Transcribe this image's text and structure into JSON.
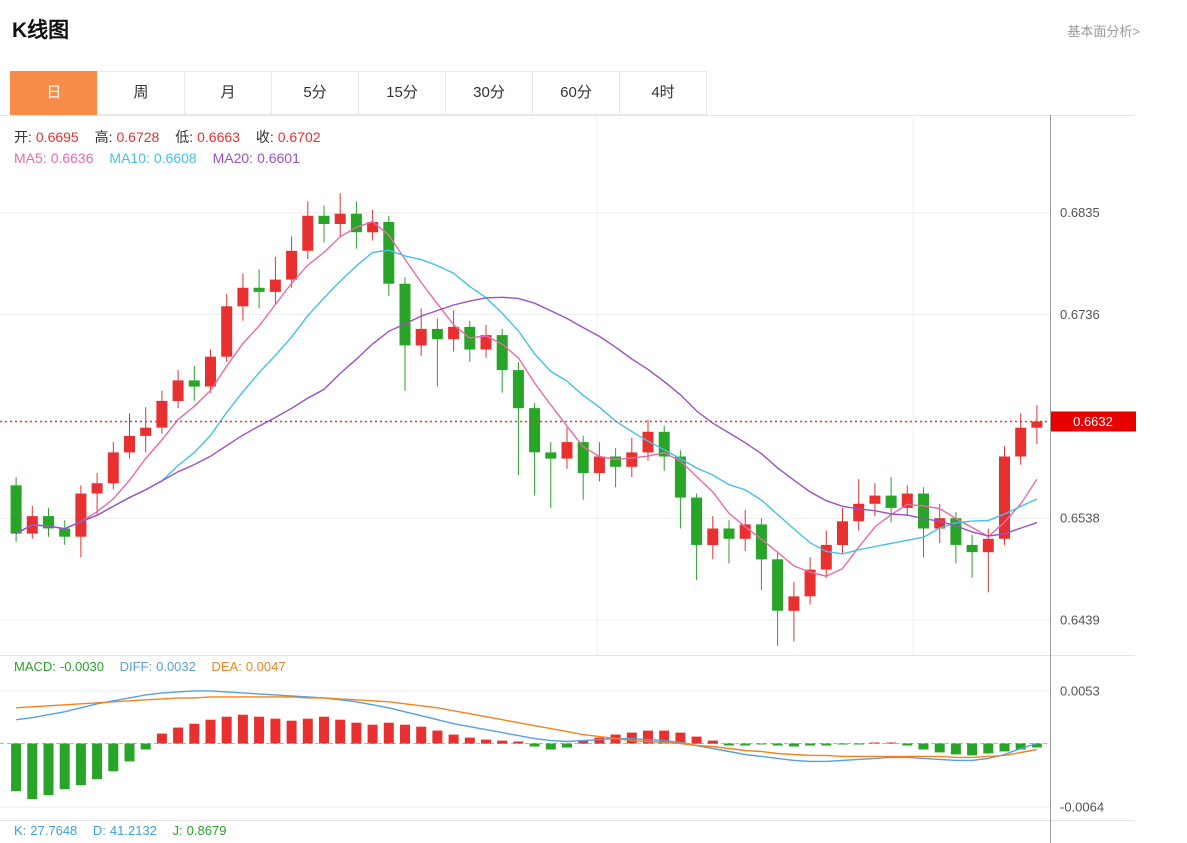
{
  "header": {
    "title": "K线图",
    "link": "基本面分析>"
  },
  "tabs": [
    {
      "label": "日",
      "active": true
    },
    {
      "label": "周",
      "active": false
    },
    {
      "label": "月",
      "active": false
    },
    {
      "label": "5分",
      "active": false
    },
    {
      "label": "15分",
      "active": false
    },
    {
      "label": "30分",
      "active": false
    },
    {
      "label": "60分",
      "active": false
    },
    {
      "label": "4时",
      "active": false
    }
  ],
  "overlay": {
    "open_label": "开:",
    "open": "0.6695",
    "high_label": "高:",
    "high": "0.6728",
    "low_label": "低:",
    "low": "0.6663",
    "close_label": "收:",
    "close": "0.6702",
    "ma5_label": "MA5:",
    "ma5": "0.6636",
    "ma10_label": "MA10:",
    "ma10": "0.6608",
    "ma20_label": "MA20:",
    "ma20": "0.6601"
  },
  "macd_overlay": {
    "macd_label": "MACD:",
    "macd": "-0.0030",
    "diff_label": "DIFF:",
    "diff": "0.0032",
    "dea_label": "DEA:",
    "dea": "0.0047"
  },
  "kdj_overlay": {
    "k_label": "K:",
    "k": "27.7648",
    "d_label": "D:",
    "d": "41.2132",
    "j_label": "J:",
    "j": "0.8679"
  },
  "colors": {
    "up": "#e93030",
    "down": "#28a428",
    "ma5": "#e96aa8",
    "ma10": "#45c1e8",
    "ma20": "#9b51c8",
    "price_line": "#f03030",
    "badge": "#e60000",
    "diff_line": "#55a0e0",
    "dea_line": "#f5821f",
    "zero_line": "#6fd8c8",
    "tab_active": "#f88c4a",
    "grid": "#ededed"
  },
  "chart_data": {
    "type": "candlestick",
    "timeframe": "日",
    "title": "K线图",
    "main": {
      "ylim": [
        0.6405,
        0.693
      ],
      "yticks": [
        0.6835,
        0.6736,
        0.6538,
        0.6439
      ],
      "current_price": 0.6632,
      "ma_periods": [
        5,
        10,
        20
      ],
      "candle_format": [
        "open",
        "close",
        "low",
        "high"
      ],
      "candles": [
        [
          0.657,
          0.6523,
          0.6515,
          0.6578
        ],
        [
          0.6523,
          0.654,
          0.6518,
          0.655
        ],
        [
          0.654,
          0.6528,
          0.652,
          0.6548
        ],
        [
          0.6528,
          0.652,
          0.6512,
          0.6536
        ],
        [
          0.652,
          0.6562,
          0.65,
          0.657
        ],
        [
          0.6562,
          0.6572,
          0.654,
          0.6582
        ],
        [
          0.6572,
          0.6602,
          0.6566,
          0.6612
        ],
        [
          0.6602,
          0.6618,
          0.6596,
          0.664
        ],
        [
          0.6618,
          0.6626,
          0.6602,
          0.6646
        ],
        [
          0.6626,
          0.6652,
          0.662,
          0.6662
        ],
        [
          0.6652,
          0.6672,
          0.6645,
          0.6682
        ],
        [
          0.6672,
          0.6666,
          0.6652,
          0.6686
        ],
        [
          0.6666,
          0.6695,
          0.666,
          0.6702
        ],
        [
          0.6695,
          0.6744,
          0.669,
          0.6756
        ],
        [
          0.6744,
          0.6762,
          0.673,
          0.6776
        ],
        [
          0.6762,
          0.6758,
          0.6742,
          0.678
        ],
        [
          0.6758,
          0.677,
          0.6746,
          0.6792
        ],
        [
          0.677,
          0.6798,
          0.6762,
          0.6812
        ],
        [
          0.6798,
          0.6832,
          0.679,
          0.6846
        ],
        [
          0.6832,
          0.6824,
          0.6806,
          0.6842
        ],
        [
          0.6824,
          0.6834,
          0.6812,
          0.6854
        ],
        [
          0.6834,
          0.6816,
          0.68,
          0.6846
        ],
        [
          0.6816,
          0.6826,
          0.6808,
          0.6838
        ],
        [
          0.6826,
          0.6766,
          0.6754,
          0.6832
        ],
        [
          0.6766,
          0.6706,
          0.6662,
          0.6772
        ],
        [
          0.6706,
          0.6722,
          0.6696,
          0.6742
        ],
        [
          0.6722,
          0.6712,
          0.6666,
          0.6732
        ],
        [
          0.6712,
          0.6724,
          0.67,
          0.674
        ],
        [
          0.6724,
          0.6702,
          0.669,
          0.673
        ],
        [
          0.6702,
          0.6716,
          0.6694,
          0.6726
        ],
        [
          0.6716,
          0.6682,
          0.666,
          0.6722
        ],
        [
          0.6682,
          0.6645,
          0.658,
          0.669
        ],
        [
          0.6645,
          0.6602,
          0.656,
          0.665
        ],
        [
          0.6602,
          0.6596,
          0.6548,
          0.6612
        ],
        [
          0.6596,
          0.6612,
          0.6586,
          0.6626
        ],
        [
          0.6612,
          0.6582,
          0.6556,
          0.6618
        ],
        [
          0.6582,
          0.6598,
          0.6574,
          0.6612
        ],
        [
          0.6598,
          0.6588,
          0.6568,
          0.6606
        ],
        [
          0.6588,
          0.6602,
          0.6578,
          0.6616
        ],
        [
          0.6602,
          0.6622,
          0.6594,
          0.6634
        ],
        [
          0.6622,
          0.6598,
          0.6584,
          0.6628
        ],
        [
          0.6598,
          0.6558,
          0.6528,
          0.6604
        ],
        [
          0.6558,
          0.6512,
          0.6478,
          0.6562
        ],
        [
          0.6512,
          0.6528,
          0.6498,
          0.654
        ],
        [
          0.6528,
          0.6518,
          0.6494,
          0.6536
        ],
        [
          0.6518,
          0.6532,
          0.6506,
          0.6546
        ],
        [
          0.6532,
          0.6498,
          0.6468,
          0.6538
        ],
        [
          0.6498,
          0.6448,
          0.6414,
          0.6504
        ],
        [
          0.6448,
          0.6462,
          0.6418,
          0.6476
        ],
        [
          0.6462,
          0.6488,
          0.6454,
          0.65
        ],
        [
          0.6488,
          0.6512,
          0.648,
          0.6526
        ],
        [
          0.6512,
          0.6535,
          0.6504,
          0.6548
        ],
        [
          0.6535,
          0.6552,
          0.6526,
          0.6576
        ],
        [
          0.6552,
          0.656,
          0.654,
          0.6572
        ],
        [
          0.656,
          0.6548,
          0.6534,
          0.6578
        ],
        [
          0.6548,
          0.6562,
          0.654,
          0.657
        ],
        [
          0.6562,
          0.6528,
          0.65,
          0.6568
        ],
        [
          0.6528,
          0.6538,
          0.6514,
          0.6552
        ],
        [
          0.6538,
          0.6512,
          0.6494,
          0.6544
        ],
        [
          0.6512,
          0.6505,
          0.648,
          0.6522
        ],
        [
          0.6505,
          0.6518,
          0.6466,
          0.6528
        ],
        [
          0.6518,
          0.6598,
          0.6512,
          0.6608
        ],
        [
          0.6598,
          0.6626,
          0.659,
          0.664
        ],
        [
          0.6626,
          0.6632,
          0.661,
          0.6648
        ]
      ]
    },
    "macd": {
      "ylim": [
        -0.0075,
        0.0066
      ],
      "yticks": [
        0.0053,
        -0.0064
      ],
      "hist": [
        -0.0048,
        -0.0056,
        -0.0052,
        -0.0046,
        -0.0042,
        -0.0036,
        -0.0028,
        -0.0018,
        -0.0006,
        0.001,
        0.0016,
        0.002,
        0.0024,
        0.0027,
        0.0029,
        0.0027,
        0.0025,
        0.0023,
        0.0025,
        0.0027,
        0.0024,
        0.0021,
        0.0019,
        0.0021,
        0.0019,
        0.0017,
        0.0013,
        0.0009,
        0.0006,
        0.0004,
        0.0003,
        0.0002,
        -0.0003,
        -0.0006,
        -0.0004,
        0.0003,
        0.0006,
        0.0009,
        0.0011,
        0.0013,
        0.0013,
        0.0011,
        0.0007,
        0.0003,
        -0.0002,
        -0.0002,
        -0.0001,
        -0.0002,
        -0.0003,
        -0.0002,
        -0.0002,
        -0.0001,
        -0.0001,
        0.0001,
        0.0001,
        -0.0002,
        -0.0006,
        -0.0009,
        -0.0011,
        -0.0012,
        -0.001,
        -0.0008,
        -0.0006,
        -0.0004
      ],
      "diff": [
        0.0024,
        0.0026,
        0.0029,
        0.0032,
        0.0036,
        0.004,
        0.0043,
        0.0046,
        0.0049,
        0.0051,
        0.0052,
        0.0053,
        0.0053,
        0.0052,
        0.0051,
        0.005,
        0.0049,
        0.0048,
        0.0047,
        0.0046,
        0.0044,
        0.0042,
        0.0039,
        0.0036,
        0.0032,
        0.0028,
        0.0024,
        0.002,
        0.0017,
        0.0014,
        0.0011,
        0.0008,
        0.0005,
        0.0003,
        0.0002,
        0.0003,
        0.0004,
        0.0005,
        0.0005,
        0.0004,
        0.0003,
        0.0001,
        -0.0002,
        -0.0005,
        -0.0008,
        -0.0011,
        -0.0013,
        -0.0015,
        -0.0017,
        -0.0018,
        -0.0018,
        -0.0017,
        -0.0016,
        -0.0015,
        -0.0014,
        -0.0014,
        -0.0015,
        -0.0016,
        -0.0017,
        -0.0017,
        -0.0015,
        -0.0011,
        -0.0005,
        0.0
      ],
      "dea": [
        0.0036,
        0.0037,
        0.0038,
        0.0039,
        0.004,
        0.0041,
        0.0042,
        0.0043,
        0.0044,
        0.0045,
        0.0046,
        0.0046,
        0.0047,
        0.0047,
        0.0047,
        0.0047,
        0.0047,
        0.0047,
        0.0046,
        0.0046,
        0.0045,
        0.0044,
        0.0043,
        0.0042,
        0.004,
        0.0038,
        0.0036,
        0.0033,
        0.003,
        0.0027,
        0.0024,
        0.0021,
        0.0018,
        0.0015,
        0.0012,
        0.0009,
        0.0007,
        0.0005,
        0.0003,
        0.0002,
        0.0001,
        0.0,
        -0.0002,
        -0.0003,
        -0.0005,
        -0.0007,
        -0.0008,
        -0.001,
        -0.0011,
        -0.0012,
        -0.0012,
        -0.0013,
        -0.0013,
        -0.0013,
        -0.0013,
        -0.0013,
        -0.0013,
        -0.0013,
        -0.0014,
        -0.0014,
        -0.0013,
        -0.0012,
        -0.0009,
        -0.0006
      ]
    }
  }
}
